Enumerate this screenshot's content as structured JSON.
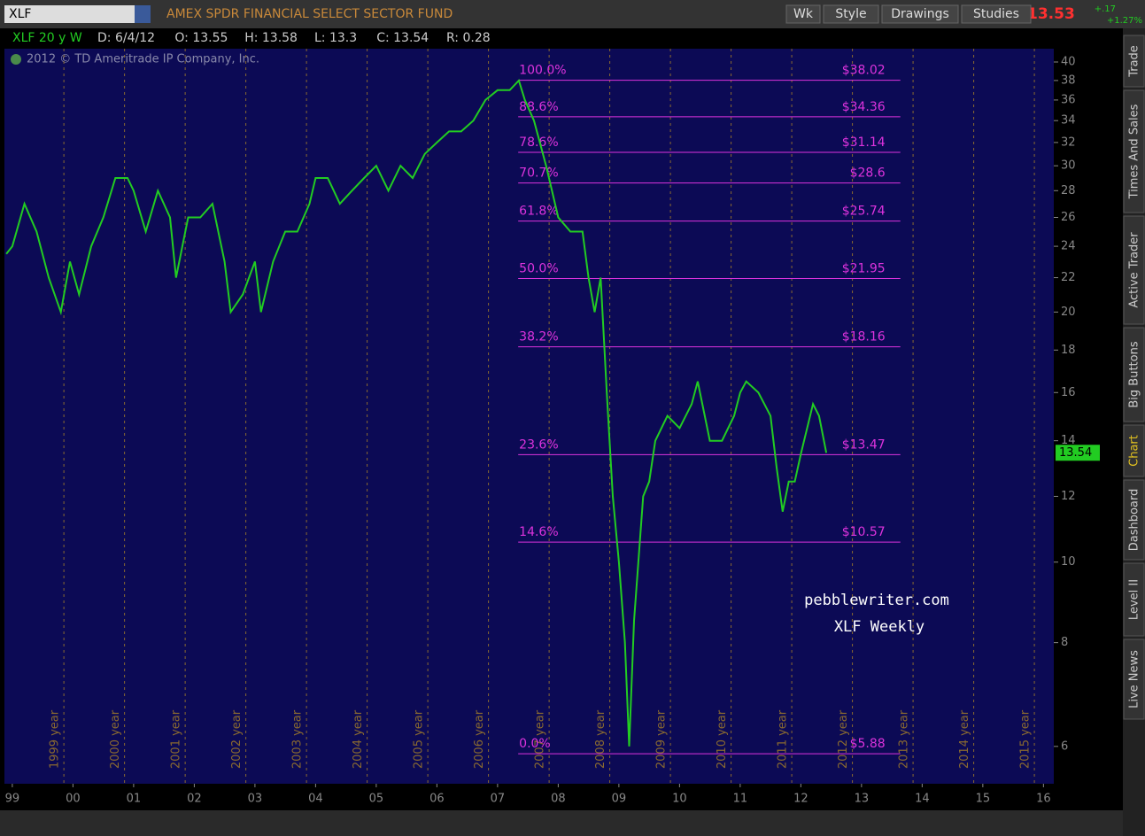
{
  "header": {
    "symbol": "XLF",
    "name": "AMEX SPDR FINANCIAL SELECT SECTOR FUND",
    "buttons": [
      "Wk",
      "Style",
      "Drawings",
      "Studies"
    ],
    "price": "13.53",
    "change": "+.17",
    "change_pct": "+1.27%"
  },
  "info": [
    "XLF 20 y W",
    "D: 6/4/12",
    "O: 13.55",
    "H: 13.58",
    "L: 13.3",
    "C: 13.54",
    "R: 0.28"
  ],
  "copyright": "2012 © TD Ameritrade IP Company, Inc.",
  "watermark": [
    "pebblewriter.com",
    "XLF Weekly"
  ],
  "tabs": [
    "Trade",
    "Times And Sales",
    "Active Trader",
    "Big Buttons",
    "Chart",
    "Dashboard",
    "Level II",
    "Live News"
  ],
  "chart_data": {
    "type": "line",
    "log_scale": true,
    "xlim": [
      1998.87,
      2016.17
    ],
    "ylim": [
      5.41,
      41.5
    ],
    "yticks": [
      6,
      8,
      10,
      12,
      14,
      16,
      18,
      20,
      22,
      24,
      26,
      28,
      30,
      32,
      34,
      36,
      38,
      40
    ],
    "xticks": [
      {
        "value": 1999,
        "label": "99"
      },
      {
        "value": 2000,
        "label": "00"
      },
      {
        "value": 2001,
        "label": "01"
      },
      {
        "value": 2002,
        "label": "02"
      },
      {
        "value": 2003,
        "label": "03"
      },
      {
        "value": 2004,
        "label": "04"
      },
      {
        "value": 2005,
        "label": "05"
      },
      {
        "value": 2006,
        "label": "06"
      },
      {
        "value": 2007,
        "label": "07"
      },
      {
        "value": 2008,
        "label": "08"
      },
      {
        "value": 2009,
        "label": "09"
      },
      {
        "value": 2010,
        "label": "10"
      },
      {
        "value": 2011,
        "label": "11"
      },
      {
        "value": 2012,
        "label": "12"
      },
      {
        "value": 2013,
        "label": "13"
      },
      {
        "value": 2014,
        "label": "14"
      },
      {
        "value": 2015,
        "label": "15"
      },
      {
        "value": 2016,
        "label": "16"
      }
    ],
    "year_lines": [
      {
        "value": 1999.85,
        "label": "1999 year"
      },
      {
        "value": 2000.85,
        "label": "2000 year"
      },
      {
        "value": 2001.85,
        "label": "2001 year"
      },
      {
        "value": 2002.85,
        "label": "2002 year"
      },
      {
        "value": 2003.85,
        "label": "2003 year"
      },
      {
        "value": 2004.85,
        "label": "2004 year"
      },
      {
        "value": 2005.85,
        "label": "2005 year"
      },
      {
        "value": 2006.85,
        "label": "2006 year"
      },
      {
        "value": 2007.85,
        "label": "2007 year"
      },
      {
        "value": 2008.85,
        "label": "2008 year"
      },
      {
        "value": 2009.85,
        "label": "2009 year"
      },
      {
        "value": 2010.85,
        "label": "2010 year"
      },
      {
        "value": 2011.85,
        "label": "2011 year"
      },
      {
        "value": 2012.85,
        "label": "2012 year"
      },
      {
        "value": 2013.85,
        "label": "2013 year"
      },
      {
        "value": 2014.85,
        "label": "2014 year"
      },
      {
        "value": 2015.85,
        "label": "2015 year"
      }
    ],
    "series": [
      {
        "name": "XLF",
        "color": "#22cc22",
        "x": [
          1998.9,
          1999.0,
          1999.2,
          1999.4,
          1999.6,
          1999.8,
          1999.95,
          2000.1,
          2000.3,
          2000.5,
          2000.7,
          2000.9,
          2001.0,
          2001.2,
          2001.4,
          2001.6,
          2001.7,
          2001.9,
          2002.1,
          2002.3,
          2002.5,
          2002.6,
          2002.8,
          2003.0,
          2003.1,
          2003.3,
          2003.5,
          2003.7,
          2003.9,
          2004.0,
          2004.2,
          2004.4,
          2004.6,
          2004.8,
          2005.0,
          2005.2,
          2005.4,
          2005.6,
          2005.8,
          2006.0,
          2006.2,
          2006.4,
          2006.6,
          2006.8,
          2007.0,
          2007.2,
          2007.35,
          2007.45,
          2007.6,
          2007.8,
          2008.0,
          2008.2,
          2008.4,
          2008.5,
          2008.6,
          2008.7,
          2008.8,
          2008.9,
          2009.0,
          2009.1,
          2009.17,
          2009.25,
          2009.4,
          2009.5,
          2009.6,
          2009.8,
          2010.0,
          2010.2,
          2010.3,
          2010.5,
          2010.7,
          2010.9,
          2011.0,
          2011.1,
          2011.3,
          2011.5,
          2011.6,
          2011.7,
          2011.8,
          2011.9,
          2012.0,
          2012.2,
          2012.3,
          2012.42
        ],
        "values": [
          23.5,
          24,
          27,
          25,
          22,
          20,
          23,
          21,
          24,
          26,
          29,
          29,
          28,
          25,
          28,
          26,
          22,
          26,
          26,
          27,
          23,
          20,
          21,
          23,
          20,
          23,
          25,
          25,
          27,
          29,
          29,
          27,
          28,
          29,
          30,
          28,
          30,
          29,
          31,
          32,
          33,
          33,
          34,
          36,
          37,
          37,
          38,
          36,
          34,
          30,
          26,
          25,
          25,
          22,
          20,
          22,
          16,
          12,
          10,
          8,
          6,
          8.5,
          12,
          12.5,
          14,
          15,
          14.5,
          15.5,
          16.5,
          14,
          14,
          15,
          16,
          16.5,
          16,
          15,
          13,
          11.5,
          12.5,
          12.5,
          13.5,
          15.5,
          15,
          13.54
        ]
      }
    ],
    "last_label": 13.54,
    "fib_start": 2007.34,
    "fib_end": 2013.64,
    "fib_color": "#dd33dd",
    "fib_levels": [
      {
        "pct": "100.0%",
        "label": "$38.02",
        "value": 38.02
      },
      {
        "pct": "88.6%",
        "label": "$34.36",
        "value": 34.36
      },
      {
        "pct": "78.6%",
        "label": "$31.14",
        "value": 31.14
      },
      {
        "pct": "70.7%",
        "label": "$28.6",
        "value": 28.6
      },
      {
        "pct": "61.8%",
        "label": "$25.74",
        "value": 25.74
      },
      {
        "pct": "50.0%",
        "label": "$21.95",
        "value": 21.95
      },
      {
        "pct": "38.2%",
        "label": "$18.16",
        "value": 18.16
      },
      {
        "pct": "23.6%",
        "label": "$13.47",
        "value": 13.47
      },
      {
        "pct": "14.6%",
        "label": "$10.57",
        "value": 10.57
      },
      {
        "pct": "0.0%",
        "label": "$5.88",
        "value": 5.88
      }
    ]
  }
}
